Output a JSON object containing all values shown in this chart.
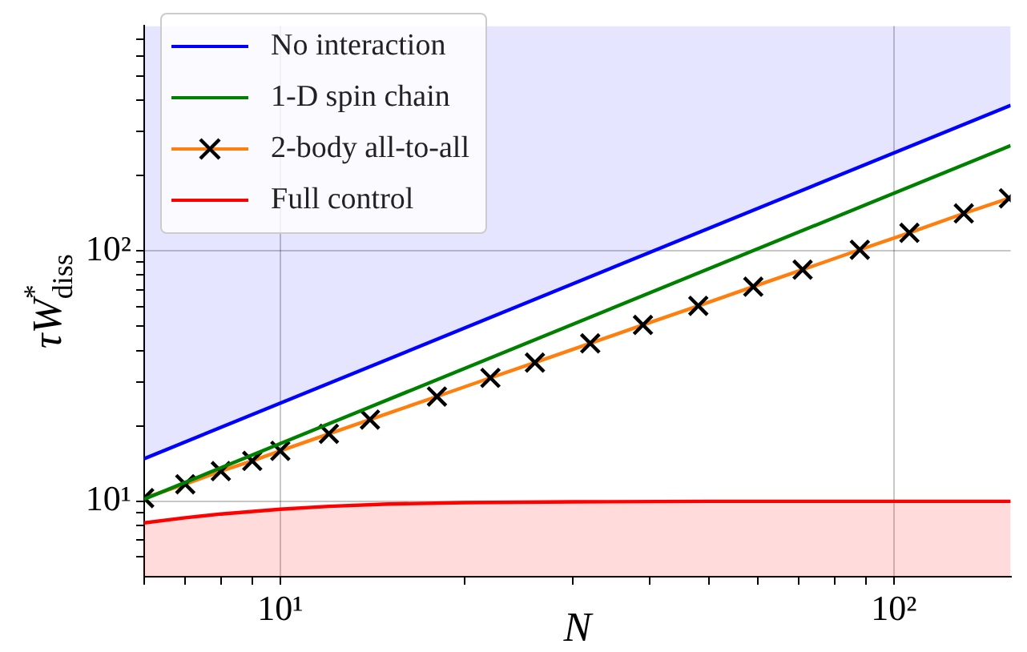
{
  "chart_data": {
    "type": "line",
    "xlabel": "N",
    "ylabel": "τW$^{*}$$_{diss}$",
    "log": "xy",
    "grid": true,
    "legend": "top left",
    "xlim": [
      6,
      155
    ],
    "ylim": [
      5,
      790
    ],
    "xticks": [
      {
        "value": 6,
        "label": null
      },
      {
        "value": 7,
        "label": null
      },
      {
        "value": 8,
        "label": null
      },
      {
        "value": 9,
        "label": null
      },
      {
        "value": 10,
        "label": "10¹"
      },
      {
        "value": 20,
        "label": null
      },
      {
        "value": 30,
        "label": null
      },
      {
        "value": 40,
        "label": null
      },
      {
        "value": 50,
        "label": null
      },
      {
        "value": 60,
        "label": null
      },
      {
        "value": 70,
        "label": null
      },
      {
        "value": 80,
        "label": null
      },
      {
        "value": 90,
        "label": null
      },
      {
        "value": 100,
        "label": "10²"
      }
    ],
    "yticks": [
      {
        "value": 6,
        "label": null
      },
      {
        "value": 7,
        "label": null
      },
      {
        "value": 8,
        "label": null
      },
      {
        "value": 9,
        "label": null
      },
      {
        "value": 10,
        "label": "10¹"
      },
      {
        "value": 20,
        "label": null
      },
      {
        "value": 30,
        "label": null
      },
      {
        "value": 40,
        "label": null
      },
      {
        "value": 50,
        "label": null
      },
      {
        "value": 60,
        "label": null
      },
      {
        "value": 70,
        "label": null
      },
      {
        "value": 80,
        "label": null
      },
      {
        "value": 90,
        "label": null
      },
      {
        "value": 100,
        "label": "10²"
      },
      {
        "value": 200,
        "label": null
      },
      {
        "value": 300,
        "label": null
      },
      {
        "value": 400,
        "label": null
      },
      {
        "value": 500,
        "label": null
      },
      {
        "value": 600,
        "label": null
      },
      {
        "value": 700,
        "label": null
      }
    ],
    "series": [
      {
        "name": "No interaction",
        "color": "#0000ff",
        "x": [
          6,
          155
        ],
        "values": [
          14.8,
          381
        ],
        "lower": [
          14.8,
          381
        ],
        "upper": [
          790,
          790
        ]
      },
      {
        "name": "1-D spin chain",
        "color": "#008000",
        "x": [
          6,
          155
        ],
        "values": [
          10.2,
          263
        ]
      },
      {
        "name": "2-body all-to-all",
        "color": "#ff7f0e",
        "marker": "cross",
        "x": [
          6,
          7,
          8,
          9,
          10,
          12,
          14,
          18,
          22,
          26,
          32,
          39,
          48,
          59,
          71,
          88,
          106,
          130,
          154
        ],
        "values": [
          10.3,
          11.7,
          13.2,
          14.5,
          15.9,
          18.6,
          21.2,
          26.2,
          31.1,
          35.8,
          42.7,
          50.6,
          60.3,
          71.9,
          84.1,
          101,
          118,
          141,
          162
        ]
      },
      {
        "name": "Full control",
        "type": "area",
        "color": "#ff0000",
        "x": [
          6,
          7,
          8,
          10,
          12,
          15,
          20,
          30,
          50,
          155
        ],
        "values": [
          8.2,
          8.6,
          8.9,
          9.3,
          9.55,
          9.75,
          9.88,
          9.95,
          10,
          10
        ]
      }
    ]
  }
}
